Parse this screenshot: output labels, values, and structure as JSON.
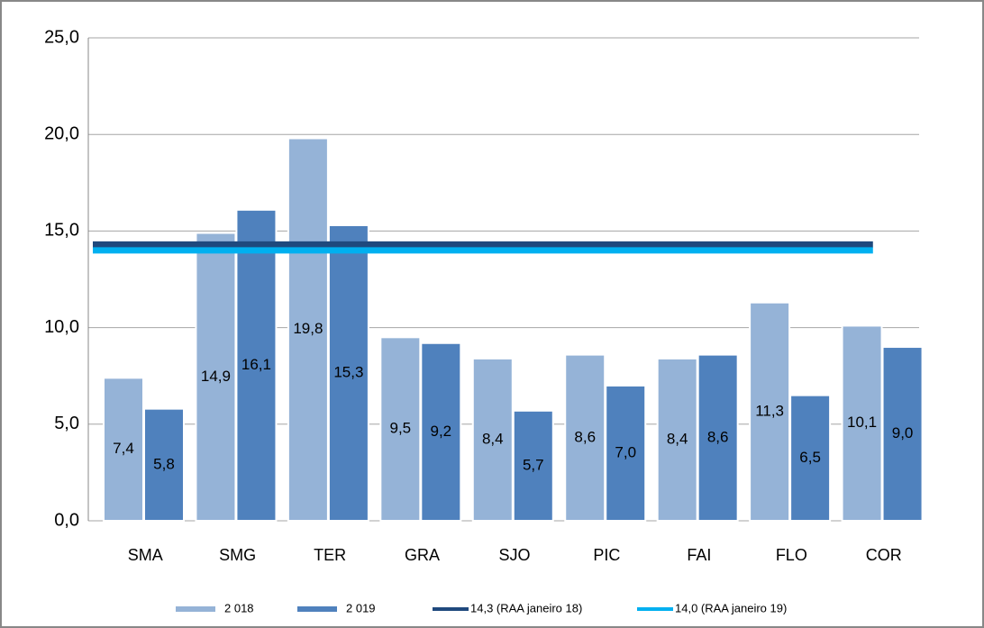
{
  "chart_data": {
    "type": "bar",
    "categories": [
      "SMA",
      "SMG",
      "TER",
      "GRA",
      "SJO",
      "PIC",
      "FAI",
      "FLO",
      "COR"
    ],
    "series": [
      {
        "name": "2 018",
        "color": "#95b3d7",
        "values": [
          7.4,
          14.9,
          19.8,
          9.5,
          8.4,
          8.6,
          8.4,
          11.3,
          10.1
        ],
        "value_labels": [
          "7,4",
          "14,9",
          "19,8",
          "9,5",
          "8,4",
          "8,6",
          "8,4",
          "11,3",
          "10,1"
        ]
      },
      {
        "name": "2 019",
        "color": "#4f81bd",
        "values": [
          5.8,
          16.1,
          15.3,
          9.2,
          5.7,
          7.0,
          8.6,
          6.5,
          9.0
        ],
        "value_labels": [
          "5,8",
          "16,1",
          "15,3",
          "9,2",
          "5,7",
          "7,0",
          "8,6",
          "6,5",
          "9,0"
        ]
      },
      {
        "name": "14,3 (RAA janeiro 18)",
        "color": "#1f497d",
        "type": "line",
        "values": [
          14.3,
          14.3,
          14.3,
          14.3,
          14.3,
          14.3,
          14.3,
          14.3,
          14.3
        ]
      },
      {
        "name": "14,0 (RAA janeiro 19)",
        "color": "#00b0f0",
        "type": "line",
        "values": [
          14.0,
          14.0,
          14.0,
          14.0,
          14.0,
          14.0,
          14.0,
          14.0,
          14.0
        ]
      }
    ],
    "ylim": [
      0,
      25
    ],
    "yticks": [
      {
        "value": 0,
        "label": "0,0"
      },
      {
        "value": 5,
        "label": "5,0"
      },
      {
        "value": 10,
        "label": "10,0"
      },
      {
        "value": 15,
        "label": "15,0"
      },
      {
        "value": 20,
        "label": "20,0"
      },
      {
        "value": 25,
        "label": "25,0"
      }
    ],
    "grid": true,
    "legend": "bottom"
  }
}
